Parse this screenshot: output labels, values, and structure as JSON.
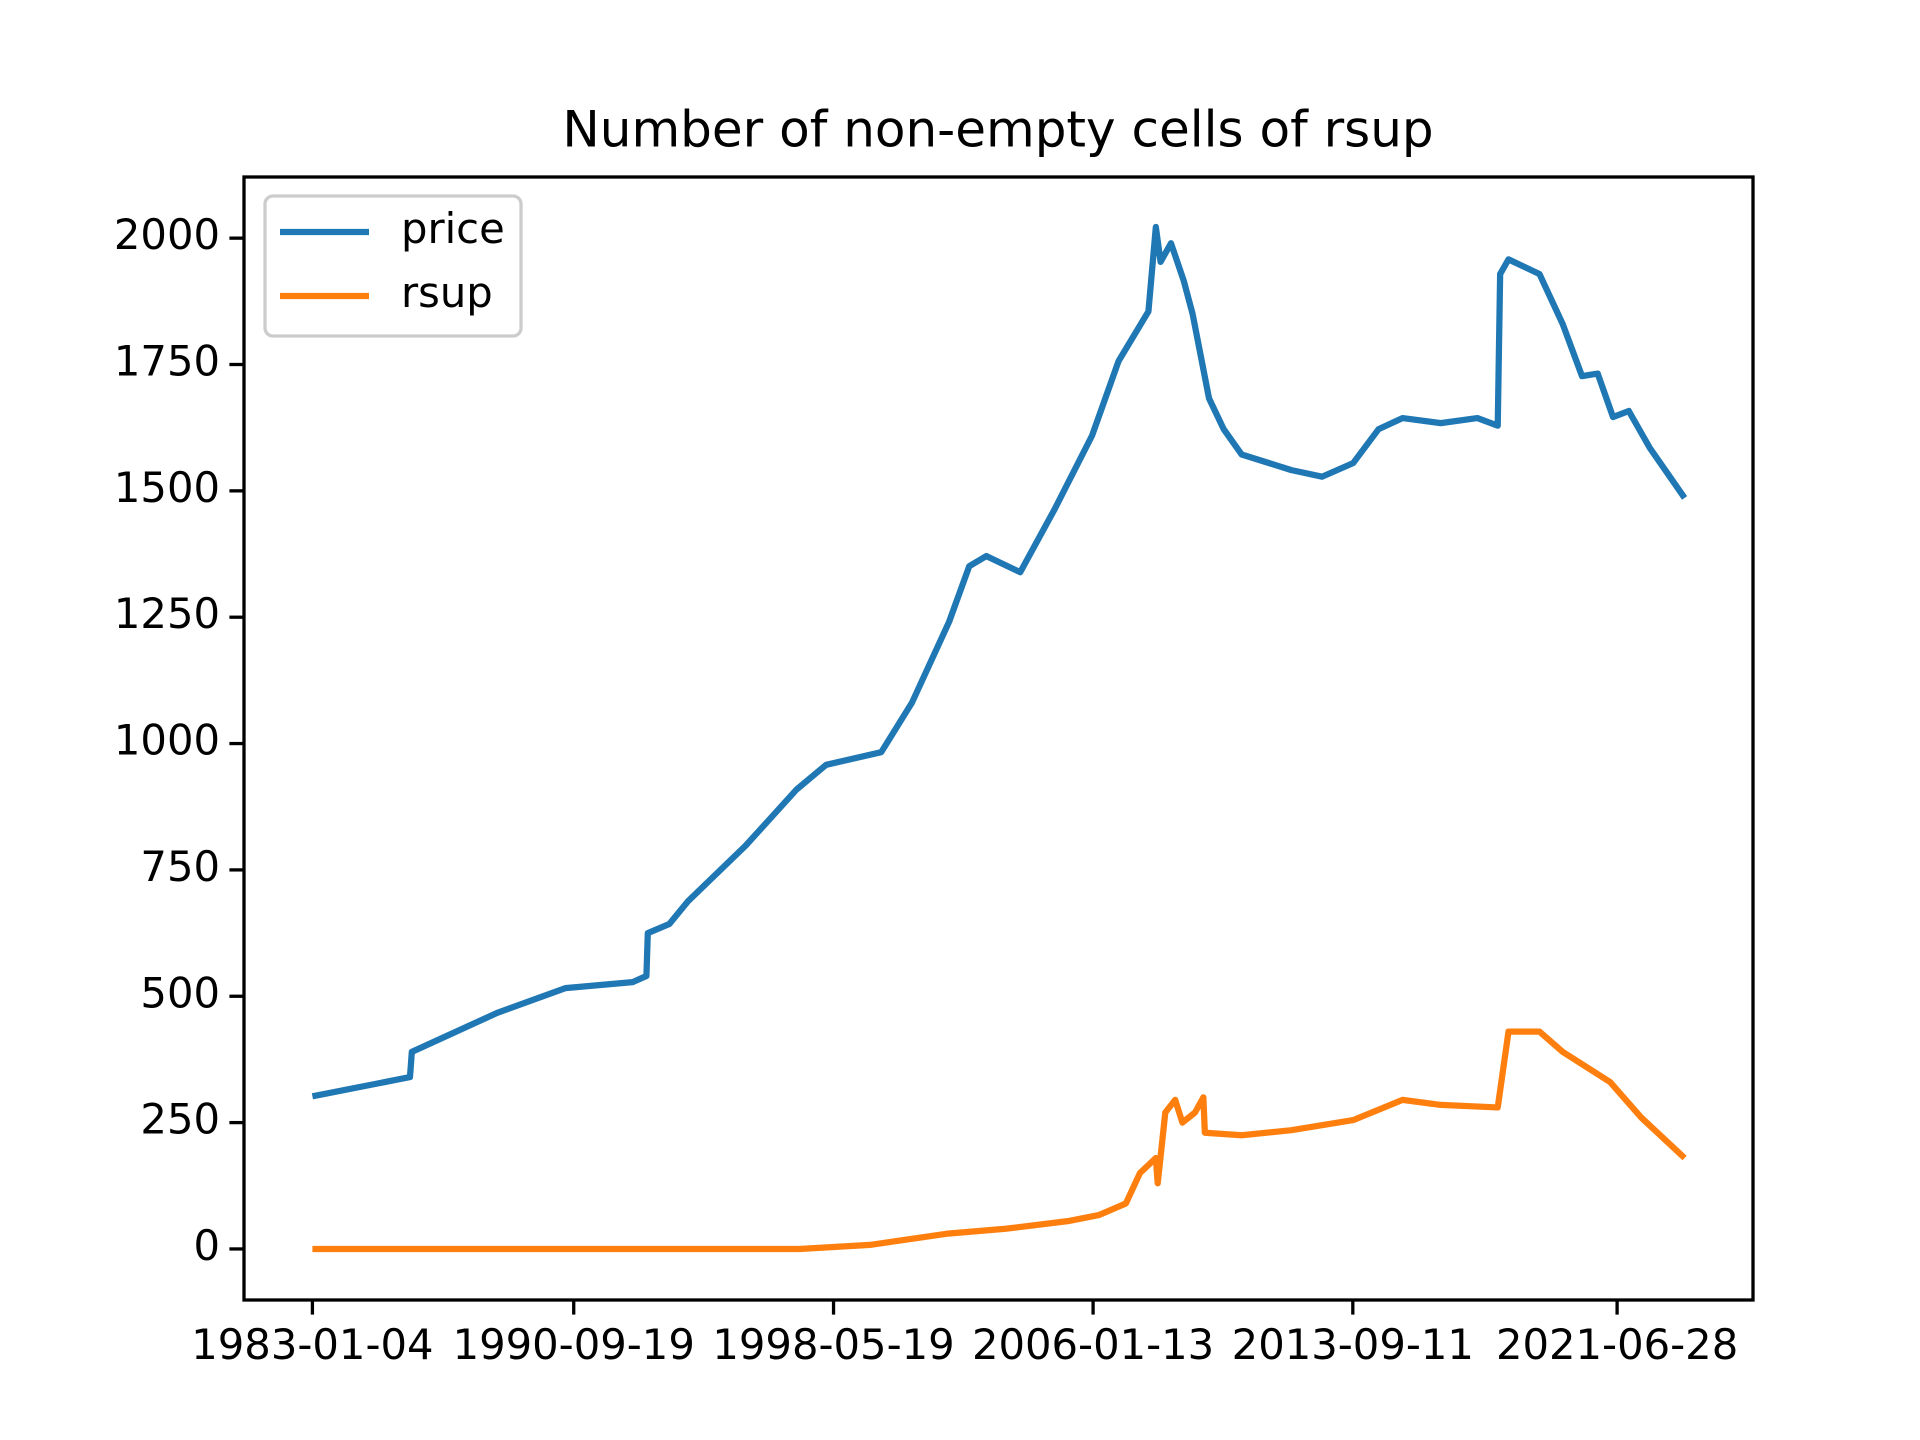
{
  "chart_data": {
    "type": "line",
    "title": "Number of non-empty cells of rsup",
    "xlim": [
      "1980-12-28",
      "2025-07-01"
    ],
    "xticks": [
      "1983-01-04",
      "1990-09-19",
      "1998-05-19",
      "2006-01-13",
      "2013-09-11",
      "2021-06-28"
    ],
    "ylim": [
      -101,
      2121
    ],
    "yticks": [
      0,
      250,
      500,
      750,
      1000,
      1250,
      1500,
      1750,
      2000
    ],
    "legend": "upper-left",
    "series": [
      {
        "name": "price",
        "color": "#1f77b4",
        "x": [
          "1983-01-04",
          "1985-11-20",
          "1985-12-10",
          "1988-06-15",
          "1990-06-20",
          "1992-06-15",
          "1992-11-10",
          "1992-11-25",
          "1993-07-15",
          "1994-02-01",
          "1995-10-15",
          "1997-04-15",
          "1998-03-01",
          "1999-10-15",
          "2000-09-10",
          "2001-10-15",
          "2002-05-20",
          "2002-11-20",
          "2003-11-20",
          "2004-11-20",
          "2006-01-01",
          "2006-10-15",
          "2007-09-01",
          "2007-11-20",
          "2008-01-10",
          "2008-05-01",
          "2008-09-15",
          "2008-12-20",
          "2009-06-15",
          "2009-11-20",
          "2010-06-01",
          "2011-11-20",
          "2012-10-15",
          "2013-09-15",
          "2014-06-15",
          "2015-03-01",
          "2016-04-15",
          "2017-05-15",
          "2017-12-20",
          "2018-01-15",
          "2018-04-15",
          "2019-03-15",
          "2019-11-20",
          "2020-06-15",
          "2020-12-01",
          "2021-05-15",
          "2021-11-01",
          "2022-06-15",
          "2023-06-25"
        ],
        "values": [
          302,
          340,
          390,
          467,
          516,
          528,
          540,
          625,
          643,
          688,
          798,
          909,
          958,
          983,
          1081,
          1241,
          1351,
          1371,
          1339,
          1462,
          1609,
          1757,
          1855,
          2022,
          1953,
          1990,
          1916,
          1850,
          1683,
          1622,
          1572,
          1541,
          1528,
          1555,
          1622,
          1644,
          1634,
          1644,
          1629,
          1929,
          1958,
          1929,
          1830,
          1727,
          1732,
          1646,
          1658,
          1585,
          1486
        ]
      },
      {
        "name": "rsup",
        "color": "#ff7f0e",
        "x": [
          "1983-01-04",
          "1997-05-15",
          "1999-06-15",
          "2001-09-15",
          "2003-06-15",
          "2005-04-15",
          "2006-03-15",
          "2007-01-01",
          "2007-06-01",
          "2007-11-20",
          "2007-12-10",
          "2008-03-01",
          "2008-06-15",
          "2008-09-01",
          "2009-01-15",
          "2009-04-15",
          "2009-05-01",
          "2010-06-01",
          "2011-11-20",
          "2013-09-15",
          "2015-03-01",
          "2016-04-15",
          "2017-12-20",
          "2018-04-15",
          "2019-03-15",
          "2019-11-20",
          "2021-04-15",
          "2022-03-15",
          "2023-06-25"
        ],
        "values": [
          0,
          0,
          8,
          30,
          40,
          55,
          67,
          90,
          150,
          180,
          130,
          270,
          295,
          250,
          270,
          300,
          230,
          225,
          235,
          255,
          295,
          285,
          280,
          430,
          430,
          390,
          330,
          260,
          180
        ]
      }
    ]
  }
}
